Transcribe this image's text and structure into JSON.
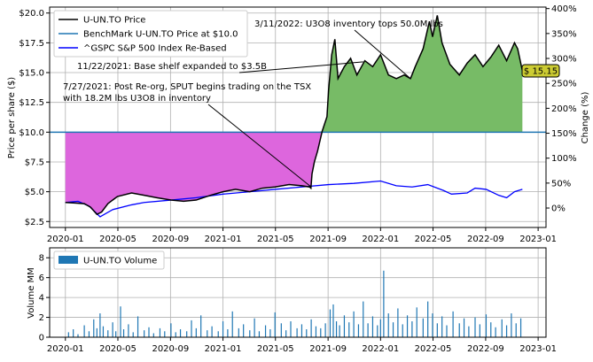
{
  "chart_data": [
    {
      "type": "line",
      "ylabel": "Price per share ($)",
      "y2label": "Change (%)",
      "ylim": [
        2.0,
        20.5
      ],
      "y2lim": [
        -39,
        403
      ],
      "xlim": [
        2019.9,
        2023.05
      ],
      "benchmark_value": 10.0,
      "last_price_label": "$ 15.15",
      "yticks": [
        {
          "v": 2.5,
          "label": "$2.5"
        },
        {
          "v": 5.0,
          "label": "$5.0"
        },
        {
          "v": 7.5,
          "label": "$7.5"
        },
        {
          "v": 10.0,
          "label": "$10.0"
        },
        {
          "v": 12.5,
          "label": "$12.5"
        },
        {
          "v": 15.0,
          "label": "$15.0"
        },
        {
          "v": 17.5,
          "label": "$17.5"
        },
        {
          "v": 20.0,
          "label": "$20.0"
        }
      ],
      "y2ticks": [
        {
          "v": 0,
          "label": "0%"
        },
        {
          "v": 50,
          "label": "50%"
        },
        {
          "v": 100,
          "label": "100%"
        },
        {
          "v": 150,
          "label": "150%"
        },
        {
          "v": 200,
          "label": "200%"
        },
        {
          "v": 250,
          "label": "250%"
        },
        {
          "v": 300,
          "label": "300%"
        },
        {
          "v": 350,
          "label": "350%"
        },
        {
          "v": 400,
          "label": "400%"
        }
      ],
      "xticks": [
        {
          "v": 2020.0,
          "label": "2020-01"
        },
        {
          "v": 2020.333,
          "label": "2020-05"
        },
        {
          "v": 2020.667,
          "label": "2020-09"
        },
        {
          "v": 2021.0,
          "label": "2021-01"
        },
        {
          "v": 2021.333,
          "label": "2021-05"
        },
        {
          "v": 2021.667,
          "label": "2021-09"
        },
        {
          "v": 2022.0,
          "label": "2022-01"
        },
        {
          "v": 2022.333,
          "label": "2022-05"
        },
        {
          "v": 2022.667,
          "label": "2022-09"
        },
        {
          "v": 2023.0,
          "label": "2023-01"
        }
      ],
      "legend": [
        "U-UN.TO Price",
        "BenchMark U-UN.TO Price at $10.0",
        "^GSPC S&P 500 Index Re-Based"
      ],
      "colors": {
        "price": "#000000",
        "benchmark": "#1f77b4",
        "sp500": "#0000ff",
        "gain_fill": "#77bb66",
        "loss_fill": "#dd66dd",
        "badge": "#cccc33"
      },
      "series": [
        {
          "name": "U-UN.TO Price",
          "points": [
            [
              2020.0,
              4.1
            ],
            [
              2020.06,
              4.05
            ],
            [
              2020.12,
              4.0
            ],
            [
              2020.16,
              3.7
            ],
            [
              2020.2,
              3.1
            ],
            [
              2020.23,
              3.3
            ],
            [
              2020.27,
              4.0
            ],
            [
              2020.33,
              4.6
            ],
            [
              2020.42,
              4.9
            ],
            [
              2020.5,
              4.7
            ],
            [
              2020.58,
              4.5
            ],
            [
              2020.67,
              4.3
            ],
            [
              2020.75,
              4.2
            ],
            [
              2020.83,
              4.3
            ],
            [
              2020.92,
              4.7
            ],
            [
              2021.0,
              5.0
            ],
            [
              2021.08,
              5.2
            ],
            [
              2021.17,
              5.0
            ],
            [
              2021.25,
              5.3
            ],
            [
              2021.33,
              5.4
            ],
            [
              2021.42,
              5.6
            ],
            [
              2021.5,
              5.5
            ],
            [
              2021.55,
              5.4
            ],
            [
              2021.558,
              5.3
            ],
            [
              2021.565,
              6.5
            ],
            [
              2021.58,
              7.5
            ],
            [
              2021.6,
              8.4
            ],
            [
              2021.63,
              10.1
            ],
            [
              2021.66,
              11.3
            ],
            [
              2021.67,
              13.5
            ],
            [
              2021.69,
              16.5
            ],
            [
              2021.71,
              17.8
            ],
            [
              2021.73,
              14.5
            ],
            [
              2021.77,
              15.5
            ],
            [
              2021.81,
              16.2
            ],
            [
              2021.85,
              14.8
            ],
            [
              2021.9,
              16.0
            ],
            [
              2021.95,
              15.5
            ],
            [
              2022.0,
              16.5
            ],
            [
              2022.05,
              14.8
            ],
            [
              2022.1,
              14.5
            ],
            [
              2022.15,
              14.8
            ],
            [
              2022.19,
              14.5
            ],
            [
              2022.22,
              15.5
            ],
            [
              2022.27,
              17.0
            ],
            [
              2022.31,
              19.3
            ],
            [
              2022.33,
              18.0
            ],
            [
              2022.36,
              19.8
            ],
            [
              2022.39,
              17.5
            ],
            [
              2022.44,
              15.7
            ],
            [
              2022.5,
              14.8
            ],
            [
              2022.55,
              15.8
            ],
            [
              2022.6,
              16.5
            ],
            [
              2022.65,
              15.5
            ],
            [
              2022.7,
              16.3
            ],
            [
              2022.75,
              17.3
            ],
            [
              2022.8,
              16.0
            ],
            [
              2022.85,
              17.5
            ],
            [
              2022.87,
              17.0
            ],
            [
              2022.9,
              15.15
            ]
          ]
        },
        {
          "name": "^GSPC S&P 500 Index Re-Based",
          "points": [
            [
              2020.0,
              4.1
            ],
            [
              2020.08,
              4.2
            ],
            [
              2020.15,
              3.8
            ],
            [
              2020.22,
              2.9
            ],
            [
              2020.3,
              3.5
            ],
            [
              2020.42,
              3.9
            ],
            [
              2020.5,
              4.1
            ],
            [
              2020.67,
              4.3
            ],
            [
              2020.83,
              4.5
            ],
            [
              2021.0,
              4.8
            ],
            [
              2021.17,
              5.0
            ],
            [
              2021.33,
              5.2
            ],
            [
              2021.5,
              5.4
            ],
            [
              2021.67,
              5.6
            ],
            [
              2021.83,
              5.7
            ],
            [
              2022.0,
              5.9
            ],
            [
              2022.1,
              5.5
            ],
            [
              2022.2,
              5.4
            ],
            [
              2022.3,
              5.6
            ],
            [
              2022.4,
              5.1
            ],
            [
              2022.45,
              4.8
            ],
            [
              2022.55,
              4.9
            ],
            [
              2022.6,
              5.3
            ],
            [
              2022.67,
              5.2
            ],
            [
              2022.75,
              4.7
            ],
            [
              2022.8,
              4.5
            ],
            [
              2022.85,
              5.0
            ],
            [
              2022.9,
              5.2
            ]
          ]
        },
        {
          "name": "BenchMark U-UN.TO Price at $10.0",
          "points": [
            [
              2020.0,
              10.0
            ],
            [
              2022.9,
              10.0
            ]
          ]
        }
      ],
      "annotations": [
        {
          "text": "3/11/2022: U3O8 inventory tops 50.0M lbs",
          "target": [
            2022.19,
            14.5
          ]
        },
        {
          "text": "11/22/2021: Base shelf expanded to $3.5B",
          "target": [
            2021.89,
            15.9
          ]
        },
        {
          "text": "7/27/2021: Post Re-org, SPUT begins trading on the TSX",
          "target": [
            2021.56,
            5.4
          ]
        },
        {
          "text": "with 18.2M lbs U3O8 in inventory",
          "target": null
        }
      ]
    },
    {
      "type": "bar",
      "ylabel": "Volume MM",
      "ylim": [
        0,
        9
      ],
      "yticks": [
        {
          "v": 0,
          "label": "0"
        },
        {
          "v": 2,
          "label": "2"
        },
        {
          "v": 4,
          "label": "4"
        },
        {
          "v": 6,
          "label": "6"
        },
        {
          "v": 8,
          "label": "8"
        }
      ],
      "legend": [
        "U-UN.TO Volume"
      ],
      "color": "#1f77b4",
      "series": [
        {
          "name": "U-UN.TO Volume",
          "points": [
            [
              2020.02,
              0.5
            ],
            [
              2020.05,
              0.8
            ],
            [
              2020.08,
              0.3
            ],
            [
              2020.12,
              1.2
            ],
            [
              2020.15,
              0.6
            ],
            [
              2020.18,
              1.8
            ],
            [
              2020.2,
              0.9
            ],
            [
              2020.22,
              2.4
            ],
            [
              2020.24,
              1.1
            ],
            [
              2020.27,
              0.7
            ],
            [
              2020.3,
              1.5
            ],
            [
              2020.32,
              0.6
            ],
            [
              2020.35,
              3.1
            ],
            [
              2020.37,
              0.8
            ],
            [
              2020.4,
              1.3
            ],
            [
              2020.43,
              0.5
            ],
            [
              2020.46,
              2.1
            ],
            [
              2020.5,
              0.7
            ],
            [
              2020.53,
              1.0
            ],
            [
              2020.56,
              0.4
            ],
            [
              2020.6,
              0.9
            ],
            [
              2020.63,
              0.6
            ],
            [
              2020.67,
              1.4
            ],
            [
              2020.7,
              0.5
            ],
            [
              2020.73,
              0.8
            ],
            [
              2020.77,
              0.6
            ],
            [
              2020.8,
              1.7
            ],
            [
              2020.83,
              0.9
            ],
            [
              2020.86,
              2.2
            ],
            [
              2020.9,
              0.7
            ],
            [
              2020.93,
              1.1
            ],
            [
              2020.97,
              0.6
            ],
            [
              2021.0,
              1.6
            ],
            [
              2021.03,
              0.8
            ],
            [
              2021.06,
              2.6
            ],
            [
              2021.1,
              0.9
            ],
            [
              2021.13,
              1.3
            ],
            [
              2021.17,
              0.7
            ],
            [
              2021.2,
              1.9
            ],
            [
              2021.23,
              0.6
            ],
            [
              2021.27,
              1.2
            ],
            [
              2021.3,
              0.8
            ],
            [
              2021.33,
              2.5
            ],
            [
              2021.37,
              1.4
            ],
            [
              2021.4,
              0.7
            ],
            [
              2021.43,
              1.6
            ],
            [
              2021.47,
              0.9
            ],
            [
              2021.5,
              1.3
            ],
            [
              2021.53,
              0.8
            ],
            [
              2021.56,
              1.8
            ],
            [
              2021.59,
              1.1
            ],
            [
              2021.62,
              0.9
            ],
            [
              2021.65,
              1.4
            ],
            [
              2021.68,
              2.8
            ],
            [
              2021.7,
              3.3
            ],
            [
              2021.72,
              1.6
            ],
            [
              2021.74,
              1.2
            ],
            [
              2021.77,
              2.2
            ],
            [
              2021.8,
              1.5
            ],
            [
              2021.83,
              2.6
            ],
            [
              2021.86,
              1.3
            ],
            [
              2021.89,
              3.6
            ],
            [
              2021.92,
              1.4
            ],
            [
              2021.95,
              2.1
            ],
            [
              2021.98,
              1.2
            ],
            [
              2022.0,
              1.8
            ],
            [
              2022.02,
              6.7
            ],
            [
              2022.05,
              2.4
            ],
            [
              2022.08,
              1.5
            ],
            [
              2022.11,
              2.9
            ],
            [
              2022.14,
              1.3
            ],
            [
              2022.17,
              2.2
            ],
            [
              2022.2,
              1.6
            ],
            [
              2022.23,
              3.0
            ],
            [
              2022.27,
              1.9
            ],
            [
              2022.3,
              3.6
            ],
            [
              2022.33,
              2.4
            ],
            [
              2022.36,
              1.4
            ],
            [
              2022.39,
              2.1
            ],
            [
              2022.42,
              1.2
            ],
            [
              2022.46,
              2.6
            ],
            [
              2022.5,
              1.4
            ],
            [
              2022.53,
              1.9
            ],
            [
              2022.56,
              1.1
            ],
            [
              2022.6,
              2.0
            ],
            [
              2022.63,
              1.3
            ],
            [
              2022.67,
              2.3
            ],
            [
              2022.7,
              1.5
            ],
            [
              2022.73,
              1.0
            ],
            [
              2022.77,
              1.8
            ],
            [
              2022.8,
              1.2
            ],
            [
              2022.83,
              2.4
            ],
            [
              2022.86,
              1.4
            ],
            [
              2022.89,
              1.9
            ]
          ]
        }
      ]
    }
  ]
}
